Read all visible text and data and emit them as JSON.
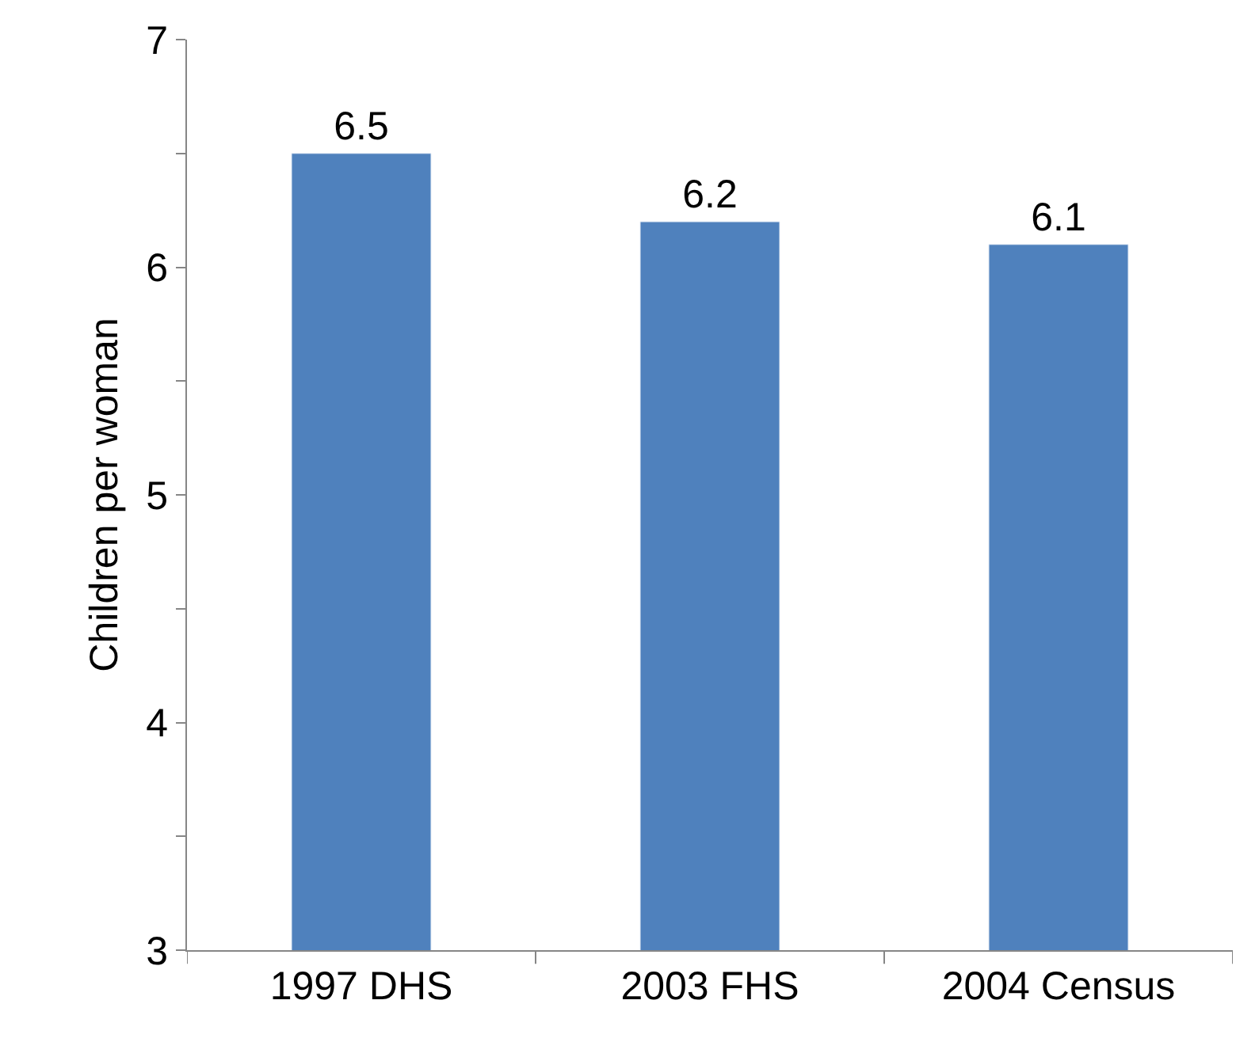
{
  "chart_data": {
    "type": "bar",
    "ylabel": "Children per woman",
    "categories": [
      "1997 DHS",
      "2003 FHS",
      "2004 Census"
    ],
    "values": [
      6.5,
      6.2,
      6.1
    ],
    "color": "#4f81bd",
    "ylim": [
      3,
      7
    ],
    "yticks": [
      3,
      {
        "value": 3.5,
        "label": null
      },
      4,
      {
        "value": 4.5,
        "label": null
      },
      5,
      {
        "value": 5.5,
        "label": null
      },
      6,
      {
        "value": 6.5,
        "label": null
      },
      7
    ],
    "data_labels": true
  }
}
